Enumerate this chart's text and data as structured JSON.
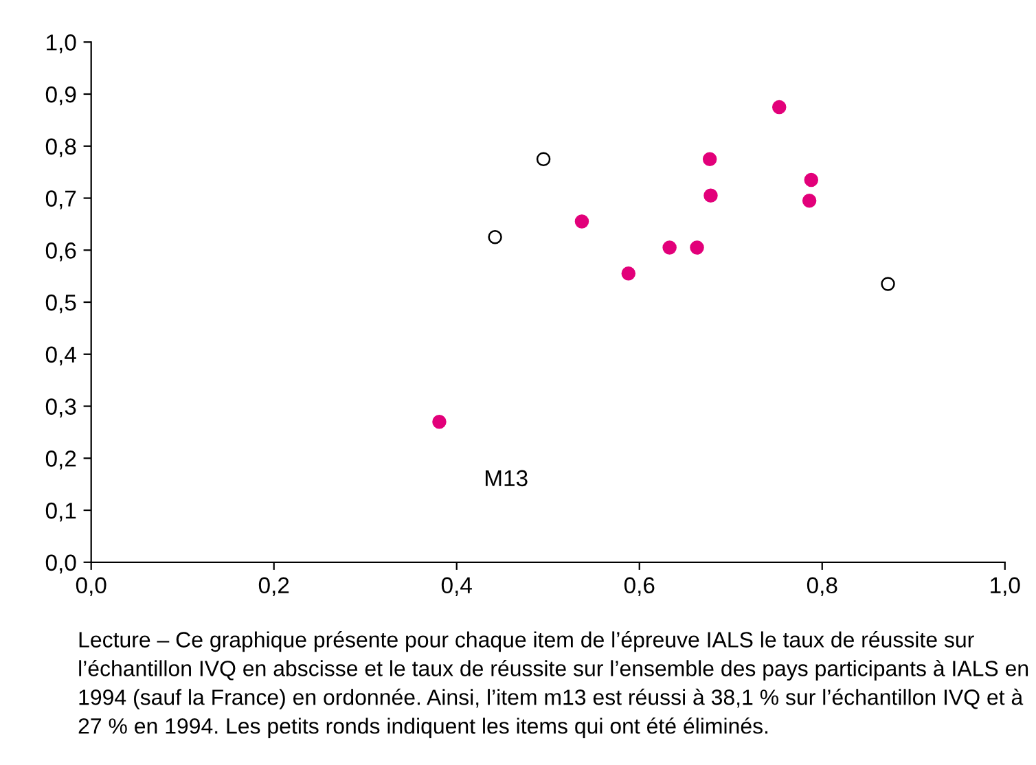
{
  "chart_data": {
    "type": "scatter",
    "xlim": [
      0,
      1
    ],
    "ylim": [
      0,
      1
    ],
    "xticks": [
      {
        "value": 0,
        "label": "0,0"
      },
      {
        "value": 0.2,
        "label": "0,2"
      },
      {
        "value": 0.4,
        "label": "0,4"
      },
      {
        "value": 0.6,
        "label": "0,6"
      },
      {
        "value": 0.8,
        "label": "0,8"
      },
      {
        "value": 1,
        "label": "1,0"
      }
    ],
    "yticks": [
      {
        "value": 0,
        "label": "0,0"
      },
      {
        "value": 0.1,
        "label": "0,1"
      },
      {
        "value": 0.2,
        "label": "0,2"
      },
      {
        "value": 0.3,
        "label": "0,3"
      },
      {
        "value": 0.4,
        "label": "0,4"
      },
      {
        "value": 0.5,
        "label": "0,5"
      },
      {
        "value": 0.6,
        "label": "0,6"
      },
      {
        "value": 0.7,
        "label": "0,7"
      },
      {
        "value": 0.8,
        "label": "0,8"
      },
      {
        "value": 0.9,
        "label": "0,9"
      },
      {
        "value": 1,
        "label": "1,0"
      }
    ],
    "grid": false,
    "legend": false,
    "marker": "circle",
    "series": [
      {
        "color": "#e2007a",
        "x": [
          0.381,
          0.537,
          0.588,
          0.633,
          0.663,
          0.677,
          0.678,
          0.753,
          0.788,
          0.786
        ],
        "values": [
          0.27,
          0.655,
          0.555,
          0.605,
          0.605,
          0.775,
          0.705,
          0.875,
          0.735,
          0.695
        ]
      },
      {
        "color": "#ffffff",
        "x": [
          0.495,
          0.442,
          0.872
        ],
        "values": [
          0.775,
          0.625,
          0.535
        ]
      }
    ],
    "annotations": [
      {
        "text": "M13",
        "x": 0.381,
        "y": 0.27
      },
      "Lecture – Ce graphique présente pour chaque item de l’épreuve IALS le taux de réussite sur l’échantillon IVQ en abscisse et le taux de réussite sur l’ensemble des pays participants à IALS en 1994 (sauf la France) en ordonnée. Ainsi, l’item m13 est réussi à 38,1 % sur l’échantillon IVQ et à 27 % en 1994. Les petits ronds indiquent les items qui ont été éliminés."
    ]
  }
}
